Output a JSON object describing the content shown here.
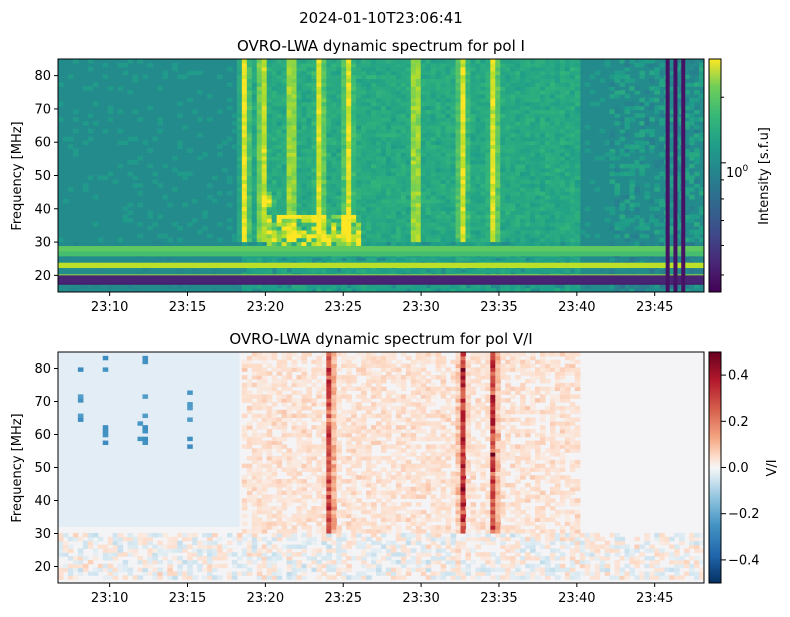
{
  "figure": {
    "suptitle": "2024-01-10T23:06:41"
  },
  "chart_data": [
    {
      "type": "heatmap",
      "title": "OVRO-LWA dynamic spectrum for pol I",
      "xlabel": "",
      "ylabel": "Frequency [MHz]",
      "xlim": [
        "23:06:41",
        "23:48:10"
      ],
      "ylim": [
        15,
        85
      ],
      "xticks": [
        "23:10",
        "23:15",
        "23:20",
        "23:25",
        "23:30",
        "23:35",
        "23:40",
        "23:45"
      ],
      "yticks": [
        20,
        30,
        40,
        50,
        60,
        70,
        80
      ],
      "colormap": "viridis",
      "colorbar": {
        "label": "Intensity [s.f.u]",
        "scale": "log",
        "ticks": [
          "10^0"
        ],
        "range": [
          0.45,
          1.9
        ]
      },
      "features": {
        "rfi_bands_MHz": [
          18,
          19.5,
          23,
          26.5,
          28
        ],
        "burst_times": [
          "23:18:30",
          "23:19:40",
          "23:21:30",
          "23:23:20",
          "23:25:10",
          "23:29:30",
          "23:32:30",
          "23:34:30"
        ],
        "bright_patch": {
          "time": "23:20",
          "freq_MHz": 42
        },
        "dark_columns": [
          "23:45:50",
          "23:46:20",
          "23:46:50"
        ]
      }
    },
    {
      "type": "heatmap",
      "title": "OVRO-LWA dynamic spectrum for pol V/I",
      "xlabel": "",
      "ylabel": "Frequency [MHz]",
      "xlim": [
        "23:06:41",
        "23:48:10"
      ],
      "ylim": [
        15,
        85
      ],
      "xticks": [
        "23:10",
        "23:15",
        "23:20",
        "23:25",
        "23:30",
        "23:35",
        "23:40",
        "23:45"
      ],
      "yticks": [
        20,
        30,
        40,
        50,
        60,
        70,
        80
      ],
      "colormap": "RdBu_r",
      "colorbar": {
        "label": "V/I",
        "scale": "linear",
        "range": [
          -0.5,
          0.5
        ],
        "ticks": [
          -0.4,
          -0.2,
          0.0,
          0.2,
          0.4
        ],
        "tick_labels": [
          "−0.4",
          "−0.2",
          "0.0",
          "0.2",
          "0.4"
        ]
      },
      "features": {
        "positive_bursts": [
          "23:24",
          "23:32:30",
          "23:34:30"
        ],
        "negative_spots_early": [
          "23:08",
          "23:09:30",
          "23:12",
          "23:15"
        ]
      }
    }
  ]
}
